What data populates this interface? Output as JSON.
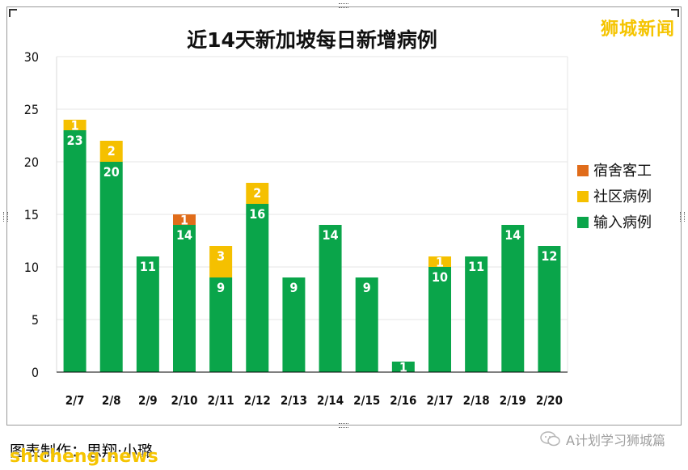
{
  "watermark_top": "狮城新闻",
  "caption": "图表制作：思翔·小璐",
  "site_watermark": "shicheng.news",
  "wechat_account": "A计划学习狮城篇",
  "colors": {
    "dormitory": "#e06c1a",
    "community": "#f5c000",
    "imported": "#0aa54a",
    "axis": "#000000",
    "grid": "#e6e6e6"
  },
  "chart_data": {
    "type": "bar",
    "stacked": true,
    "title": "近14天新加坡每日新增病例",
    "categories": [
      "2/7",
      "2/8",
      "2/9",
      "2/10",
      "2/11",
      "2/12",
      "2/13",
      "2/14",
      "2/15",
      "2/16",
      "2/17",
      "2/18",
      "2/19",
      "2/20"
    ],
    "series": [
      {
        "name": "输入病例",
        "color": "#0aa54a",
        "values": [
          23,
          20,
          11,
          14,
          9,
          16,
          9,
          14,
          9,
          1,
          10,
          11,
          14,
          12
        ]
      },
      {
        "name": "社区病例",
        "color": "#f5c000",
        "values": [
          1,
          2,
          0,
          0,
          3,
          2,
          0,
          0,
          0,
          0,
          1,
          0,
          0,
          0
        ]
      },
      {
        "name": "宿舍客工",
        "color": "#e06c1a",
        "values": [
          0,
          0,
          0,
          1,
          0,
          0,
          0,
          0,
          0,
          0,
          0,
          0,
          0,
          0
        ]
      }
    ],
    "legend": [
      "宿舍客工",
      "社区病例",
      "输入病例"
    ],
    "legend_position": "right",
    "ylim": [
      0,
      30
    ],
    "yticks": [
      0,
      5,
      10,
      15,
      20,
      25,
      30
    ],
    "grid": true,
    "xlabel": "",
    "ylabel": ""
  }
}
